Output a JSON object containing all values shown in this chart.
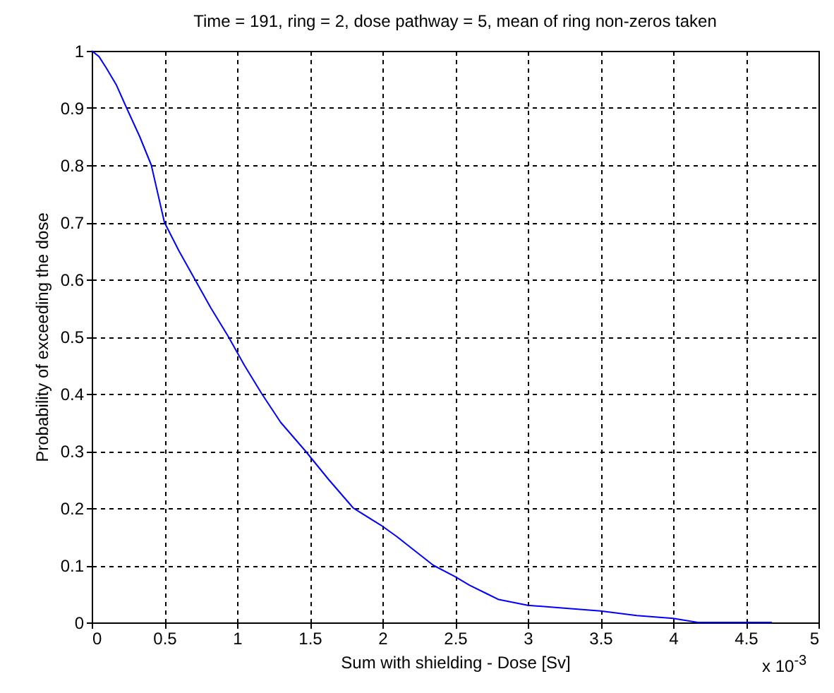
{
  "chart_data": {
    "type": "line",
    "title": "Time = 191, ring = 2, dose pathway = 5, mean of ring non-zeros taken",
    "xlabel": "Sum with shielding - Dose [Sv]",
    "ylabel": "Probability of exceeding the dose",
    "annotations": [
      "x 10$^{-3}$"
    ],
    "x": [
      0,
      0.05,
      0.1,
      0.17,
      0.24,
      0.33,
      0.41,
      0.5,
      0.6,
      0.71,
      0.82,
      0.94,
      1.05,
      1.17,
      1.3,
      1.47,
      1.63,
      1.8,
      1.99,
      2.1,
      2.2,
      2.35,
      2.5,
      2.6,
      2.72,
      2.8,
      3.0,
      3.25,
      3.5,
      3.75,
      4.0,
      4.17,
      4.68
    ],
    "series": [
      {
        "color": "#0000ff",
        "values": [
          1,
          0.99,
          0.97,
          0.94,
          0.9,
          0.85,
          0.8,
          0.7,
          0.65,
          0.6,
          0.55,
          0.5,
          0.45,
          0.4,
          0.35,
          0.3,
          0.25,
          0.2,
          0.17,
          0.15,
          0.13,
          0.1,
          0.08,
          0.065,
          0.05,
          0.04,
          0.03,
          0.025,
          0.02,
          0.012,
          0.007,
          0,
          0
        ]
      }
    ],
    "xlim": [
      0,
      5
    ],
    "xticks": [
      0,
      0.5,
      1,
      1.5,
      2,
      2.5,
      3,
      3.5,
      4,
      4.5,
      5
    ],
    "ylim": [
      0,
      1
    ],
    "yticks": [
      0,
      0.1,
      0.2,
      0.3,
      0.4,
      0.5,
      0.6,
      0.7,
      0.8,
      0.9,
      1
    ],
    "grid": true,
    "line_style": "solid",
    "marker": "none"
  }
}
